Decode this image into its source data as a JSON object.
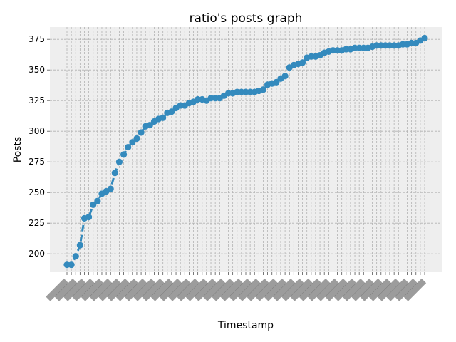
{
  "chart_data": {
    "type": "line",
    "title": "ratio's posts graph",
    "xlabel": "Timestamp",
    "ylabel": "Posts",
    "ylim": [
      185,
      385
    ],
    "yticks": [
      200,
      225,
      250,
      275,
      300,
      325,
      350,
      375
    ],
    "grid": true,
    "x_tick_note": "x tick labels are date strings rotated 45° and overlapping; individual labels are not legible",
    "series": [
      {
        "color": "#348ABD",
        "linestyle": "dashed",
        "marker": "circle",
        "values": [
          191,
          191,
          198,
          207,
          229,
          230,
          240,
          243,
          249,
          251,
          253,
          266,
          275,
          281,
          287,
          291,
          294,
          299,
          304,
          305,
          308,
          310,
          311,
          315,
          316,
          319,
          321,
          321,
          323,
          324,
          326,
          326,
          325,
          327,
          327,
          327,
          329,
          331,
          331,
          332,
          332,
          332,
          332,
          332,
          333,
          334,
          338,
          339,
          340,
          343,
          345,
          352,
          354,
          355,
          356,
          360,
          361,
          361,
          362,
          364,
          365,
          366,
          366,
          366,
          367,
          367,
          368,
          368,
          368,
          368,
          369,
          370,
          370,
          370,
          370,
          370,
          370,
          371,
          371,
          372,
          372,
          374,
          376
        ]
      }
    ]
  }
}
